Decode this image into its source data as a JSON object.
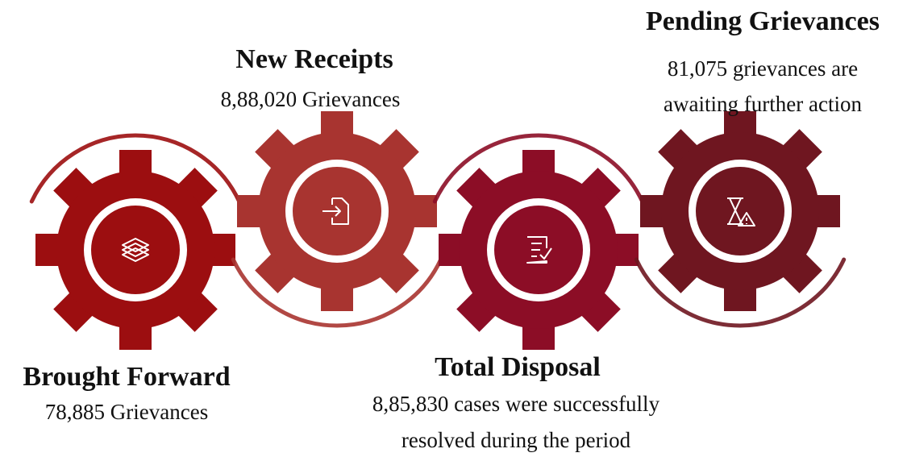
{
  "steps": [
    {
      "title": "Brought Forward",
      "lines": [
        "78,885 Grievances"
      ]
    },
    {
      "title": "New Receipts",
      "lines": [
        "8,88,020 Grievances"
      ]
    },
    {
      "title": "Total Disposal",
      "lines": [
        "8,85,830 cases were successfully",
        "resolved during the period"
      ]
    },
    {
      "title": "Pending Grievances",
      "lines": [
        "81,075 grievances are",
        "awaiting further action"
      ]
    }
  ]
}
